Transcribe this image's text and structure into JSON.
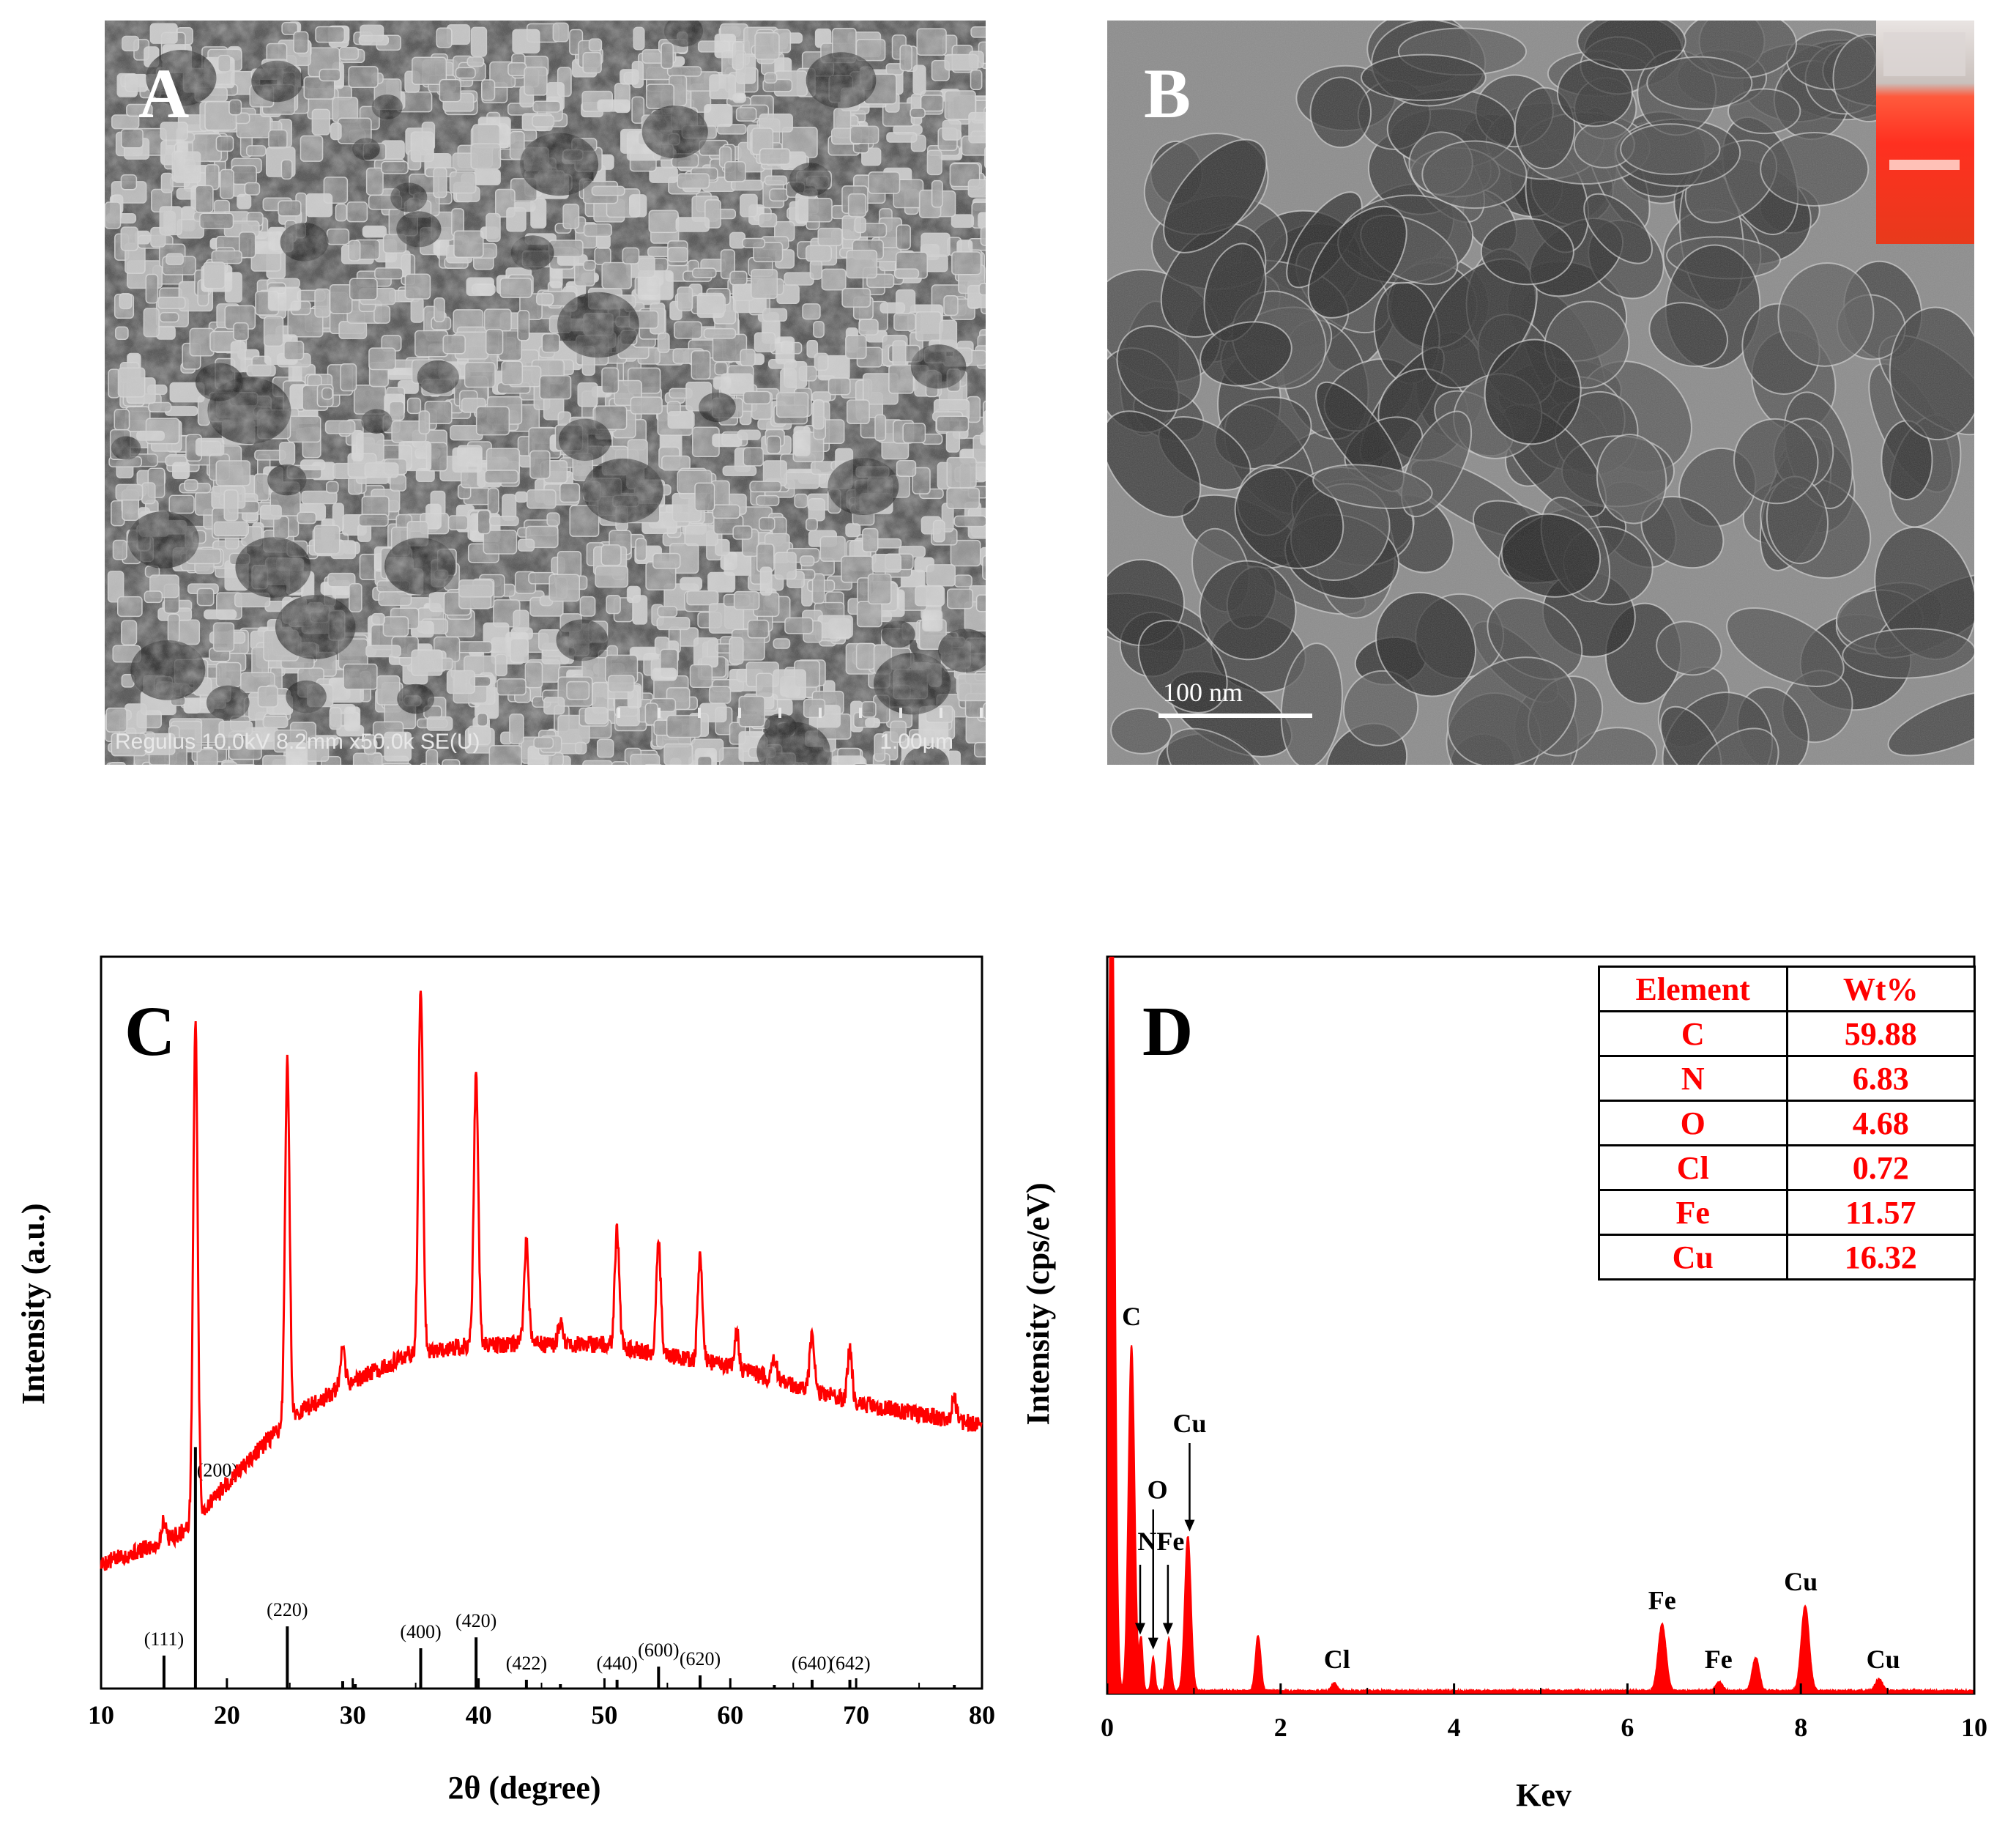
{
  "panels": {
    "A": {
      "letter": "A",
      "caption": "Regulus 10.0kV 8.2mm x50.0k SE(U)",
      "scale_label": "1.00μm",
      "image_description_icon": "sem-micrograph"
    },
    "B": {
      "letter": "B",
      "scale_label": "100 nm",
      "image_description_icon": "tem-micrograph"
    },
    "C": {
      "letter": "C",
      "xlabel": "2θ (degree)",
      "ylabel": "Intensity (a.u.)",
      "x_ticks": [
        "10",
        "20",
        "30",
        "40",
        "50",
        "60",
        "70",
        "80"
      ]
    },
    "D": {
      "letter": "D",
      "xlabel": "Kev",
      "ylabel": "Intensity (cps/eV)",
      "x_ticks": [
        "0",
        "2",
        "4",
        "6",
        "8",
        "10"
      ],
      "table": {
        "headers": [
          "Element",
          "Wt%"
        ],
        "rows": [
          {
            "element": "C",
            "wt": "59.88"
          },
          {
            "element": "N",
            "wt": "6.83"
          },
          {
            "element": "O",
            "wt": "4.68"
          },
          {
            "element": "Cl",
            "wt": "0.72"
          },
          {
            "element": "Fe",
            "wt": "11.57"
          },
          {
            "element": "Cu",
            "wt": "16.32"
          }
        ]
      }
    }
  },
  "colors": {
    "trace": "#ff0000",
    "axis": "#000000",
    "table_text": "#ff0000"
  },
  "chart_data": [
    {
      "type": "line",
      "panel": "C",
      "title": "",
      "xlabel": "2θ (degree)",
      "ylabel": "Intensity (a.u.)",
      "xlim": [
        10,
        80
      ],
      "ylim": [
        0,
        100
      ],
      "baseline": [
        [
          10,
          17
        ],
        [
          15,
          20
        ],
        [
          17,
          22
        ],
        [
          20,
          28
        ],
        [
          25,
          37
        ],
        [
          30,
          42
        ],
        [
          35,
          46
        ],
        [
          40,
          47
        ],
        [
          50,
          47
        ],
        [
          60,
          44
        ],
        [
          70,
          39
        ],
        [
          80,
          36
        ]
      ],
      "peaks": [
        {
          "x": 15.0,
          "height": 3
        },
        {
          "x": 17.5,
          "height": 68
        },
        {
          "x": 24.8,
          "height": 49
        },
        {
          "x": 29.2,
          "height": 5
        },
        {
          "x": 35.4,
          "height": 50
        },
        {
          "x": 39.8,
          "height": 37
        },
        {
          "x": 43.8,
          "height": 14
        },
        {
          "x": 46.5,
          "height": 3
        },
        {
          "x": 51.0,
          "height": 16
        },
        {
          "x": 54.3,
          "height": 15
        },
        {
          "x": 57.6,
          "height": 15
        },
        {
          "x": 60.5,
          "height": 5
        },
        {
          "x": 63.5,
          "height": 3
        },
        {
          "x": 66.5,
          "height": 8
        },
        {
          "x": 69.5,
          "height": 7
        },
        {
          "x": 77.8,
          "height": 3
        }
      ],
      "reference_lines": [
        {
          "x": 15.0,
          "height": 4.5,
          "label": "(111)"
        },
        {
          "x": 17.5,
          "height": 33,
          "label": "(200)"
        },
        {
          "x": 24.8,
          "height": 8.5,
          "label": "(220)"
        },
        {
          "x": 29.2,
          "height": 1,
          "label": ""
        },
        {
          "x": 30.2,
          "height": 0.6,
          "label": ""
        },
        {
          "x": 35.4,
          "height": 5.5,
          "label": "(400)"
        },
        {
          "x": 39.8,
          "height": 7,
          "label": "(420)"
        },
        {
          "x": 43.8,
          "height": 1.2,
          "label": "(422)"
        },
        {
          "x": 46.5,
          "height": 0.6,
          "label": ""
        },
        {
          "x": 51.0,
          "height": 1.2,
          "label": "(440)"
        },
        {
          "x": 54.3,
          "height": 3,
          "label": "(600)"
        },
        {
          "x": 57.6,
          "height": 1.8,
          "label": "(620)"
        },
        {
          "x": 63.5,
          "height": 0.5,
          "label": ""
        },
        {
          "x": 66.5,
          "height": 1.2,
          "label": "(640)"
        },
        {
          "x": 69.5,
          "height": 1.2,
          "label": "(642)"
        },
        {
          "x": 77.8,
          "height": 0.5,
          "label": ""
        }
      ]
    },
    {
      "type": "line",
      "panel": "D",
      "title": "",
      "xlabel": "Kev",
      "ylabel": "Intensity (cps/eV)",
      "xlim": [
        0,
        10
      ],
      "ylim": [
        0,
        100
      ],
      "peaks": [
        {
          "x": 0.05,
          "height": 118,
          "width": 0.035
        },
        {
          "x": 0.28,
          "height": 47,
          "width": 0.035
        },
        {
          "x": 0.39,
          "height": 7,
          "width": 0.02
        },
        {
          "x": 0.53,
          "height": 4.5,
          "width": 0.02
        },
        {
          "x": 0.71,
          "height": 7,
          "width": 0.025
        },
        {
          "x": 0.93,
          "height": 21,
          "width": 0.035
        },
        {
          "x": 1.74,
          "height": 7.5,
          "width": 0.03
        },
        {
          "x": 2.62,
          "height": 1,
          "width": 0.03
        },
        {
          "x": 6.4,
          "height": 9,
          "width": 0.045
        },
        {
          "x": 7.06,
          "height": 1.2,
          "width": 0.04
        },
        {
          "x": 7.48,
          "height": 4.5,
          "width": 0.04
        },
        {
          "x": 8.05,
          "height": 11.5,
          "width": 0.045
        },
        {
          "x": 8.9,
          "height": 1.6,
          "width": 0.04
        }
      ],
      "annotations": [
        {
          "label": "C",
          "x": 0.28,
          "y": 50
        },
        {
          "label": "Cu",
          "x": 0.95,
          "y": 35.5
        },
        {
          "label": "O",
          "x": 0.58,
          "y": 26.5
        },
        {
          "label": "NFe",
          "x": 0.62,
          "y": 19.5
        },
        {
          "label": "Cl",
          "x": 2.65,
          "y": 3.5
        },
        {
          "label": "Fe",
          "x": 6.4,
          "y": 11.5
        },
        {
          "label": "Fe",
          "x": 7.05,
          "y": 3.5
        },
        {
          "label": "Cu",
          "x": 8.0,
          "y": 14
        },
        {
          "label": "Cu",
          "x": 8.95,
          "y": 3.5
        }
      ],
      "arrows": [
        {
          "x": 0.38,
          "y_from": 17.5,
          "y_to": 8
        },
        {
          "x": 0.53,
          "y_from": 25,
          "y_to": 6
        },
        {
          "x": 0.7,
          "y_from": 17.5,
          "y_to": 8
        },
        {
          "x": 0.95,
          "y_from": 34,
          "y_to": 22
        }
      ]
    }
  ]
}
